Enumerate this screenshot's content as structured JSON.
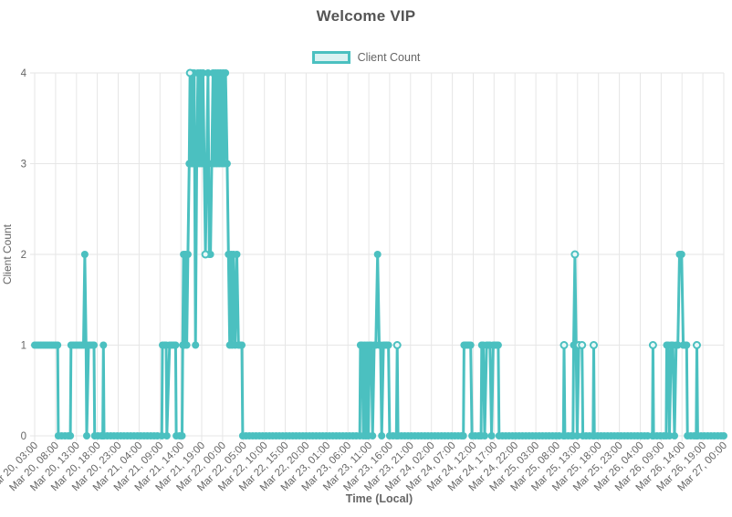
{
  "title": "Welcome VIP",
  "legend": {
    "label": "Client Count"
  },
  "axes": {
    "x_title": "Time (Local)",
    "y_title": "Client Count"
  },
  "colors": {
    "accent": "#4bc0c0",
    "accent_fill_light": "#def3f3",
    "open_marker_fill": "#e9f8f8",
    "grid": "#e6e6e6",
    "text": "#666666",
    "title_text": "#555555"
  },
  "chart_data": {
    "type": "line",
    "title": "Welcome VIP",
    "xlabel": "Time (Local)",
    "ylabel": "Client Count",
    "legend_entries": [
      "Client Count"
    ],
    "legend_position": "top",
    "grid": true,
    "ylim": [
      0,
      4
    ],
    "y_ticks": [
      0,
      1,
      2,
      3,
      4
    ],
    "x_tick_step_hours": 5,
    "x_hours_total": 165,
    "x_tick_labels": [
      "Mar 20, 03:00",
      "Mar 20, 08:00",
      "Mar 20, 13:00",
      "Mar 20, 18:00",
      "Mar 20, 23:00",
      "Mar 21, 04:00",
      "Mar 21, 09:00",
      "Mar 21, 14:00",
      "Mar 21, 19:00",
      "Mar 22, 00:00",
      "Mar 22, 05:00",
      "Mar 22, 10:00",
      "Mar 22, 15:00",
      "Mar 22, 20:00",
      "Mar 23, 01:00",
      "Mar 23, 06:00",
      "Mar 23, 11:00",
      "Mar 23, 16:00",
      "Mar 23, 21:00",
      "Mar 24, 02:00",
      "Mar 24, 07:00",
      "Mar 24, 12:00",
      "Mar 24, 17:00",
      "Mar 24, 22:00",
      "Mar 25, 03:00",
      "Mar 25, 08:00",
      "Mar 25, 13:00",
      "Mar 25, 18:00",
      "Mar 25, 23:00",
      "Mar 26, 04:00",
      "Mar 26, 09:00",
      "Mar 26, 14:00",
      "Mar 26, 19:00",
      "Mar 27, 00:00"
    ],
    "series": [
      {
        "name": "Client Count",
        "color": "#4bc0c0",
        "points_format": "[hours_since_Mar20_03:00, client_count, open_marker_flag?]",
        "points": [
          [
            0,
            1
          ],
          [
            0.5,
            1
          ],
          [
            1,
            1
          ],
          [
            1.5,
            1
          ],
          [
            2,
            1
          ],
          [
            2.5,
            1
          ],
          [
            3,
            1
          ],
          [
            3.5,
            1
          ],
          [
            4,
            1
          ],
          [
            4.5,
            1
          ],
          [
            5,
            1
          ],
          [
            5.5,
            1
          ],
          [
            5.65,
            0
          ],
          [
            8.55,
            0
          ],
          [
            8.7,
            1
          ],
          [
            9.2,
            1
          ],
          [
            9.7,
            1
          ],
          [
            10.2,
            1
          ],
          [
            10.7,
            1
          ],
          [
            11.2,
            1
          ],
          [
            11.7,
            1
          ],
          [
            12,
            2
          ],
          [
            12.3,
            1
          ],
          [
            12.45,
            0
          ],
          [
            12.9,
            1
          ],
          [
            13.4,
            1
          ],
          [
            13.9,
            1
          ],
          [
            14.2,
            1
          ],
          [
            14.35,
            0
          ],
          [
            16.3,
            0
          ],
          [
            16.45,
            1
          ],
          [
            16.6,
            0
          ],
          [
            30.45,
            0
          ],
          [
            30.6,
            1
          ],
          [
            31.1,
            1
          ],
          [
            31.5,
            1
          ],
          [
            31.65,
            0
          ],
          [
            32.3,
            1
          ],
          [
            32.8,
            1
          ],
          [
            33.3,
            1
          ],
          [
            33.75,
            1
          ],
          [
            33.9,
            0
          ],
          [
            35.3,
            0
          ],
          [
            35.45,
            1
          ],
          [
            35.65,
            2
          ],
          [
            35.85,
            1
          ],
          [
            36.1,
            2
          ],
          [
            36.4,
            1
          ],
          [
            36.7,
            2
          ],
          [
            37,
            3
          ],
          [
            37.2,
            4,
            1
          ],
          [
            37.45,
            3
          ],
          [
            37.7,
            4
          ],
          [
            37.95,
            3
          ],
          [
            38.2,
            4
          ],
          [
            38.5,
            1
          ],
          [
            38.8,
            3
          ],
          [
            39.1,
            4
          ],
          [
            39.4,
            3
          ],
          [
            39.7,
            4
          ],
          [
            40,
            3
          ],
          [
            40.3,
            4
          ],
          [
            40.6,
            3
          ],
          [
            40.9,
            2,
            1
          ],
          [
            41.2,
            3
          ],
          [
            41.5,
            4
          ],
          [
            41.8,
            2
          ],
          [
            42.1,
            2
          ],
          [
            42.4,
            3
          ],
          [
            42.7,
            4
          ],
          [
            43,
            3
          ],
          [
            43.3,
            4
          ],
          [
            43.6,
            3
          ],
          [
            43.9,
            4
          ],
          [
            44.2,
            3
          ],
          [
            44.5,
            4
          ],
          [
            44.8,
            3
          ],
          [
            45.1,
            4
          ],
          [
            45.4,
            3
          ],
          [
            45.7,
            4
          ],
          [
            46.1,
            3
          ],
          [
            46.4,
            2
          ],
          [
            46.7,
            1
          ],
          [
            47,
            2
          ],
          [
            47.3,
            1
          ],
          [
            47.6,
            2
          ],
          [
            48,
            1
          ],
          [
            48.4,
            2
          ],
          [
            48.8,
            1
          ],
          [
            49.2,
            1
          ],
          [
            49.6,
            1
          ],
          [
            49.8,
            0
          ],
          [
            77.85,
            0
          ],
          [
            78,
            1
          ],
          [
            78.4,
            1
          ],
          [
            78.7,
            0
          ],
          [
            79,
            1
          ],
          [
            79.3,
            0
          ],
          [
            79.6,
            1
          ],
          [
            79.9,
            0
          ],
          [
            80.2,
            1
          ],
          [
            80.6,
            1
          ],
          [
            80.9,
            0
          ],
          [
            81.3,
            1
          ],
          [
            81.7,
            1
          ],
          [
            82.1,
            2
          ],
          [
            82.5,
            1
          ],
          [
            82.8,
            1
          ],
          [
            83.1,
            0
          ],
          [
            83.5,
            1
          ],
          [
            83.9,
            1
          ],
          [
            84.3,
            1
          ],
          [
            84.7,
            1
          ],
          [
            85,
            0
          ],
          [
            86.6,
            0
          ],
          [
            86.8,
            1,
            1
          ],
          [
            87,
            0
          ],
          [
            102.65,
            0
          ],
          [
            102.8,
            1
          ],
          [
            103.2,
            1
          ],
          [
            103.6,
            1
          ],
          [
            104,
            1
          ],
          [
            104.4,
            1
          ],
          [
            104.7,
            0
          ],
          [
            106.9,
            0
          ],
          [
            107.05,
            1
          ],
          [
            107.4,
            1
          ],
          [
            107.75,
            0
          ],
          [
            108.2,
            1
          ],
          [
            108.6,
            1
          ],
          [
            109,
            1
          ],
          [
            109.4,
            0
          ],
          [
            109.8,
            1
          ],
          [
            110.2,
            1
          ],
          [
            110.6,
            1
          ],
          [
            111,
            1
          ],
          [
            111.2,
            0
          ],
          [
            126.6,
            0
          ],
          [
            126.75,
            1,
            1
          ],
          [
            126.95,
            0
          ],
          [
            128.9,
            0
          ],
          [
            129.05,
            1
          ],
          [
            129.35,
            2,
            1
          ],
          [
            129.65,
            1
          ],
          [
            129.9,
            0
          ],
          [
            130.3,
            1,
            1
          ],
          [
            130.7,
            1
          ],
          [
            131.05,
            1,
            1
          ],
          [
            131.25,
            0
          ],
          [
            133.7,
            0
          ],
          [
            133.85,
            1,
            1
          ],
          [
            134,
            0
          ],
          [
            147.9,
            0
          ],
          [
            148.05,
            1,
            1
          ],
          [
            148.2,
            0
          ],
          [
            151.2,
            0
          ],
          [
            151.35,
            1
          ],
          [
            151.7,
            1
          ],
          [
            152,
            0
          ],
          [
            152.4,
            1
          ],
          [
            152.8,
            1
          ],
          [
            153.2,
            0
          ],
          [
            153.6,
            1
          ],
          [
            154,
            1
          ],
          [
            154.4,
            2
          ],
          [
            154.9,
            2
          ],
          [
            155.3,
            1
          ],
          [
            155.7,
            1
          ],
          [
            156.1,
            1
          ],
          [
            156.3,
            0
          ],
          [
            158.4,
            0
          ],
          [
            158.55,
            1,
            1
          ],
          [
            158.75,
            0
          ],
          [
            165,
            0
          ]
        ]
      }
    ]
  }
}
